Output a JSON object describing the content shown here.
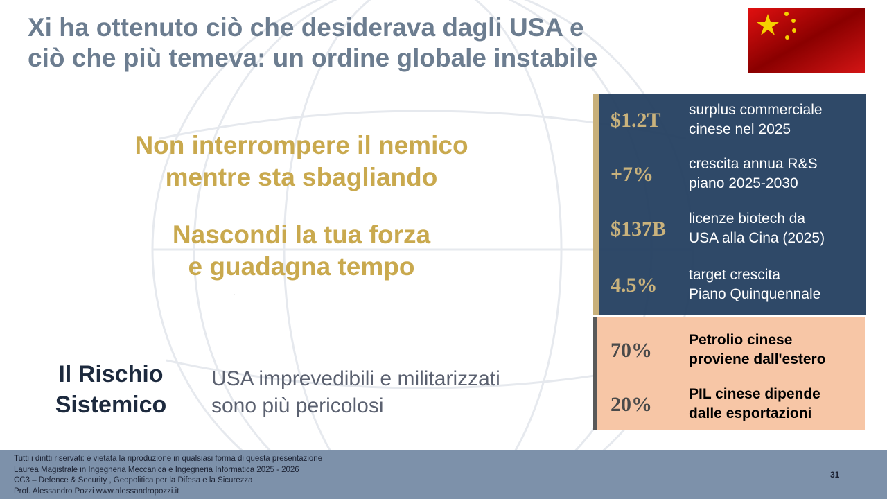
{
  "title": {
    "lines": [
      "Xi ha ottenuto ciò che desiderava dagli USA e",
      "ciò che più temeva: un ordine globale instabile"
    ]
  },
  "quotes": [
    {
      "lines": [
        "Non interrompere il nemico",
        "mentre sta sbagliando"
      ]
    },
    {
      "lines": [
        "Nascondi la tua forza",
        "e guadagna tempo"
      ]
    }
  ],
  "dot": ".",
  "risk": {
    "label": [
      "Il Rischio",
      "Sistemico"
    ],
    "text": [
      "USA imprevedibili e militarizzati",
      "sono più pericolosi"
    ]
  },
  "stats_dark": [
    {
      "value": "$1.2T",
      "desc": [
        "surplus commerciale",
        "cinese nel 2025"
      ]
    },
    {
      "value": "+7%",
      "desc": [
        "crescita annua R&S",
        "piano 2025-2030"
      ]
    },
    {
      "value": "$137B",
      "desc": [
        "licenze biotech da",
        "USA alla Cina (2025)"
      ]
    },
    {
      "value": "4.5%",
      "desc": [
        "target crescita",
        "Piano Quinquennale"
      ]
    }
  ],
  "stats_light": [
    {
      "value": "70%",
      "desc": [
        "Petrolio cinese",
        "proviene dall'estero"
      ]
    },
    {
      "value": "20%",
      "desc": [
        "PIL cinese dipende",
        "dalle esportazioni"
      ]
    }
  ],
  "footer": {
    "lines": [
      "Tutti i diritti riservati: è vietata la riproduzione in qualsiasi forma di questa presentazione",
      "Laurea Magistrale in Ingegneria Meccanica e Ingegneria Informatica 2025 - 2026",
      "CC3 – Defence & Security , Geopolitica per la Difesa e la Sicurezza",
      "Prof. Alessandro Pozzi  www.alessandropozzi.it"
    ],
    "page": "31"
  }
}
